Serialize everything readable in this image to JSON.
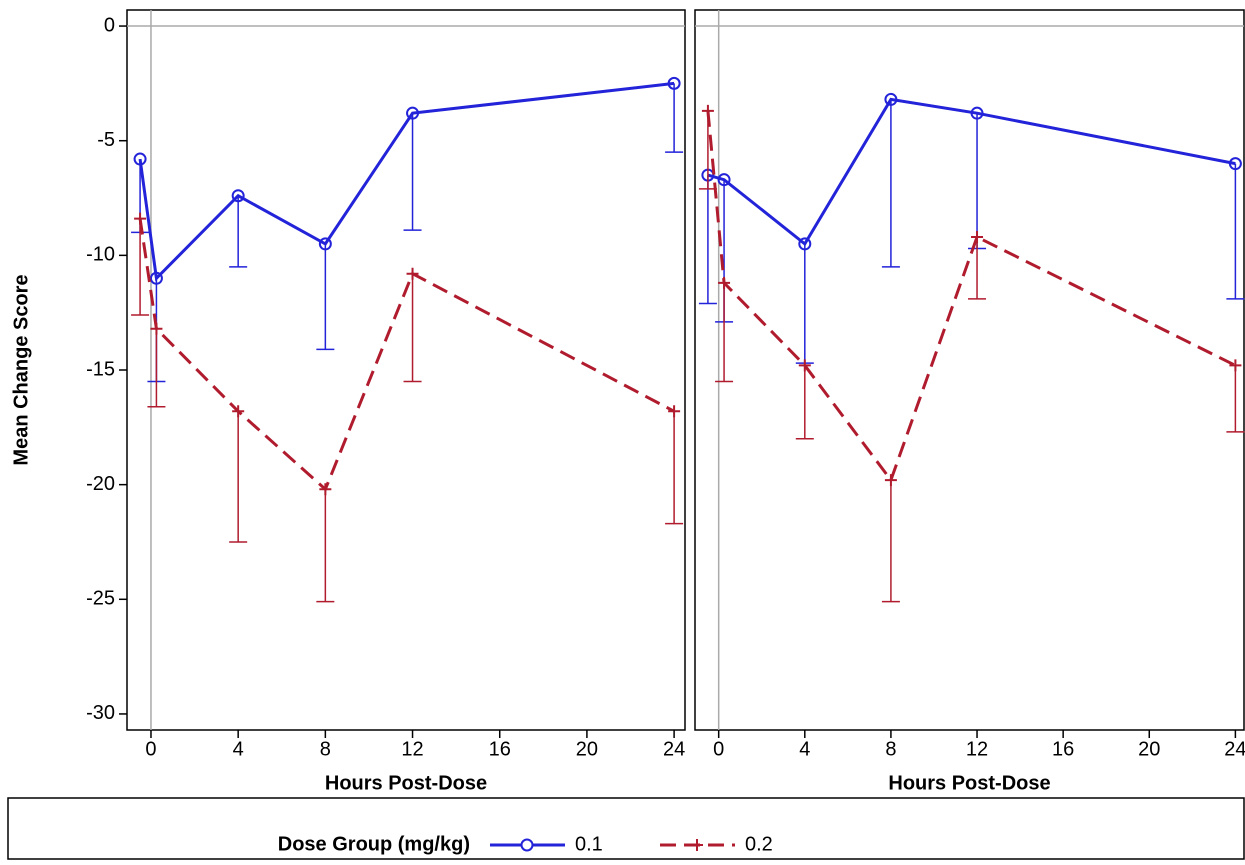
{
  "chart_data": [
    {
      "type": "line",
      "x_label": "Hours Post-Dose",
      "y_label": "Mean Change Score",
      "xlim": [
        -1.1,
        24.5
      ],
      "xticks": [
        0,
        4,
        8,
        12,
        16,
        20,
        24
      ],
      "ylim": [
        -30.7,
        0.7
      ],
      "yticks": [
        0,
        -5,
        -10,
        -15,
        -20,
        -25,
        -30
      ],
      "reference_lines": {
        "x": 0,
        "y": 0
      },
      "series": [
        {
          "name": "0.1",
          "color": "#2323d9",
          "marker": "circle",
          "line_style": "solid",
          "x": [
            -0.5,
            0.25,
            4,
            8,
            12,
            24
          ],
          "values": [
            -5.8,
            -11.0,
            -7.4,
            -9.5,
            -3.8,
            -2.5
          ],
          "lower": [
            -9.0,
            -15.5,
            -10.5,
            -14.1,
            -8.9,
            -5.5
          ]
        },
        {
          "name": "0.2",
          "color": "#b01c2e",
          "marker": "plus",
          "line_style": "dashed",
          "x": [
            -0.5,
            0.25,
            4,
            8,
            12,
            24
          ],
          "values": [
            -8.4,
            -13.2,
            -16.8,
            -20.2,
            -10.8,
            -16.8
          ],
          "lower": [
            -12.6,
            -16.6,
            -22.5,
            -25.1,
            -15.5,
            -21.7
          ]
        }
      ]
    },
    {
      "type": "line",
      "x_label": "Hours Post-Dose",
      "xlim": [
        -1.1,
        24.4
      ],
      "xticks": [
        0,
        4,
        8,
        12,
        16,
        20,
        24
      ],
      "ylim": [
        -30.7,
        0.7
      ],
      "reference_lines": {
        "x": 0,
        "y": 0
      },
      "series": [
        {
          "name": "0.1",
          "color": "#2323d9",
          "marker": "circle",
          "line_style": "solid",
          "x": [
            -0.5,
            0.25,
            4,
            8,
            12,
            24
          ],
          "values": [
            -6.5,
            -6.7,
            -9.5,
            -3.2,
            -3.8,
            -6.0
          ],
          "lower": [
            -12.1,
            -12.9,
            -14.7,
            -10.5,
            -9.7,
            -11.9
          ]
        },
        {
          "name": "0.2",
          "color": "#b01c2e",
          "marker": "plus",
          "line_style": "dashed",
          "x": [
            -0.5,
            0.25,
            4,
            8,
            12,
            24
          ],
          "values": [
            -3.7,
            -11.2,
            -14.8,
            -19.8,
            -9.2,
            -14.8
          ],
          "lower": [
            -7.1,
            -15.5,
            -18.0,
            -25.1,
            -11.9,
            -17.7
          ]
        }
      ]
    }
  ],
  "legend": {
    "title": "Dose Group (mg/kg)"
  }
}
